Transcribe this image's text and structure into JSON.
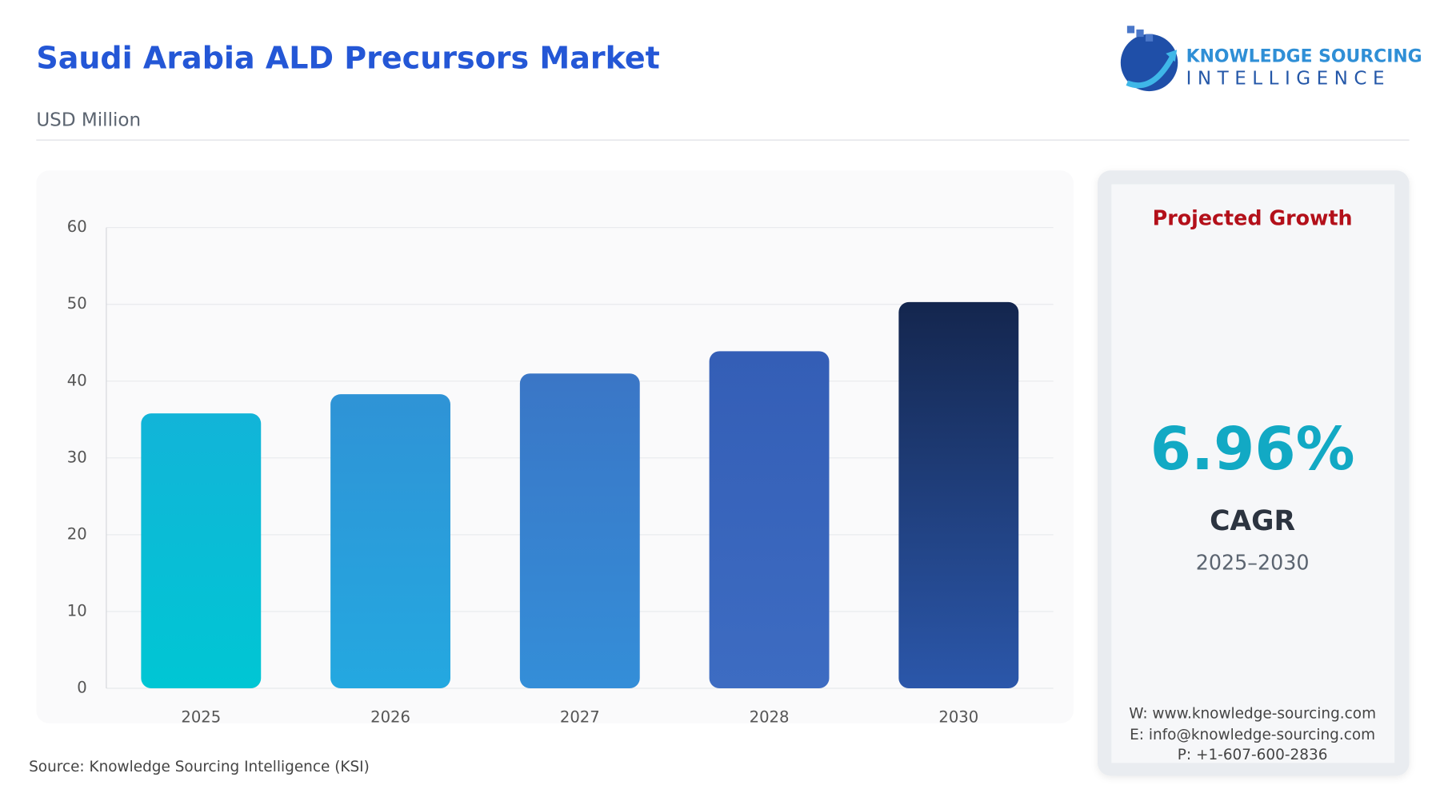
{
  "chart_data": {
    "type": "bar",
    "title": "Saudi Arabia ALD Precursors Market",
    "subtitle": "USD Million",
    "source": "Source: Knowledge Sourcing Intelligence (KSI)",
    "categories": [
      "2025",
      "2026",
      "2027",
      "2028",
      "2030"
    ],
    "values": [
      35.8,
      38.3,
      41.0,
      43.9,
      50.3
    ],
    "colors": [
      [
        "#12b4d8",
        "#00c6d4"
      ],
      [
        "#2f93d6",
        "#24a8e0"
      ],
      [
        "#3a76c6",
        "#348ed8"
      ],
      [
        "#345eb6",
        "#3d6cc2"
      ],
      [
        "#14264e",
        "#2b57aa"
      ]
    ],
    "ylim": [
      0,
      60
    ],
    "yticks": [
      0,
      10,
      20,
      30,
      40,
      50,
      60
    ],
    "grid": true
  },
  "panel": {
    "heading": "Projected Growth",
    "value": "6.96%",
    "label": "CAGR",
    "period": "2025–2030",
    "contacts": [
      "W: www.knowledge-sourcing.com",
      "E: info@knowledge-sourcing.com",
      "P: +1-607-600-2836"
    ]
  },
  "logo": {
    "line1": "KNOWLEDGE SOURCING",
    "line2": "INTELLIGENCE"
  }
}
